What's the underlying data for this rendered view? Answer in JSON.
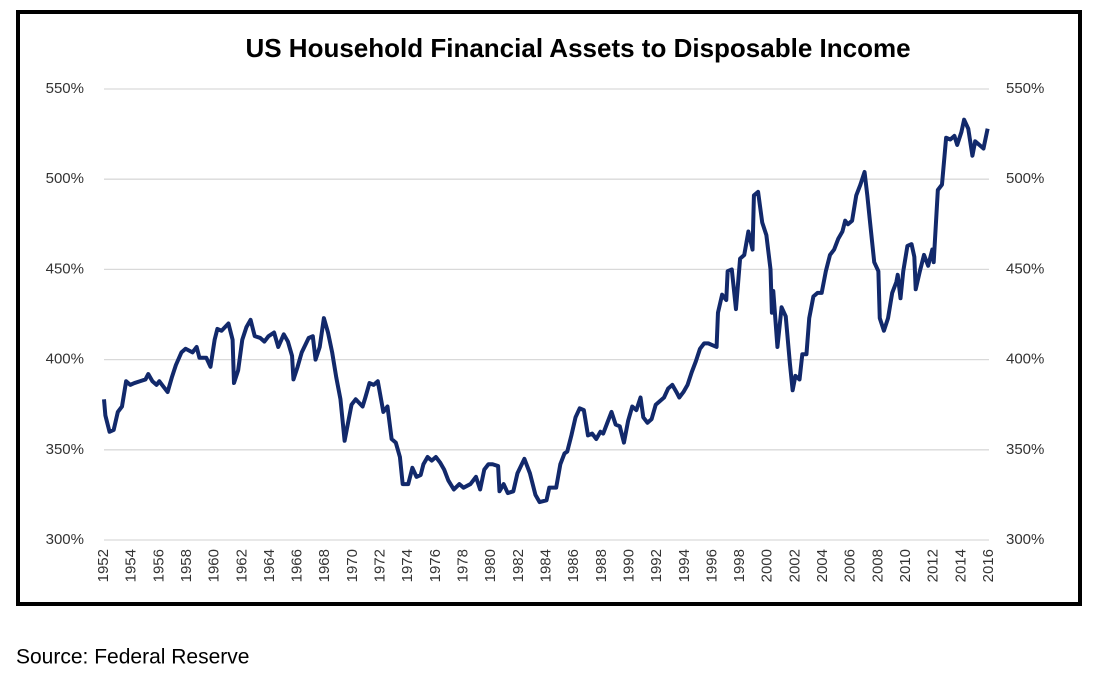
{
  "chart_data": {
    "type": "line",
    "title": "US Household Financial Assets to Disposable Income",
    "source": "Source: Federal Reserve",
    "xlim": [
      1952,
      2016
    ],
    "xticks": [
      1952,
      1954,
      1956,
      1958,
      1960,
      1962,
      1964,
      1966,
      1968,
      1970,
      1972,
      1974,
      1976,
      1978,
      1980,
      1982,
      1984,
      1986,
      1988,
      1990,
      1992,
      1994,
      1996,
      1998,
      2000,
      2002,
      2004,
      2006,
      2008,
      2010,
      2012,
      2014,
      2016
    ],
    "ylim": [
      300,
      550
    ],
    "yticks": [
      {
        "value": 300,
        "label": "300%"
      },
      {
        "value": 350,
        "label": "350%"
      },
      {
        "value": 400,
        "label": "400%"
      },
      {
        "value": 450,
        "label": "450%"
      },
      {
        "value": 500,
        "label": "500%"
      },
      {
        "value": 550,
        "label": "550%"
      }
    ],
    "y2lim": [
      300,
      550
    ],
    "y2ticks": [
      {
        "value": 300,
        "label": "300%"
      },
      {
        "value": 350,
        "label": "350%"
      },
      {
        "value": 400,
        "label": "400%"
      },
      {
        "value": 450,
        "label": "450%"
      },
      {
        "value": 500,
        "label": "500%"
      },
      {
        "value": 550,
        "label": "550%"
      }
    ],
    "grid": true,
    "x": [
      1952.0,
      1952.1,
      1952.4,
      1952.7,
      1953.0,
      1953.3,
      1953.6,
      1953.9,
      1954.2,
      1954.6,
      1955.0,
      1955.2,
      1955.5,
      1955.8,
      1956.0,
      1956.3,
      1956.6,
      1956.9,
      1957.2,
      1957.6,
      1957.9,
      1958.4,
      1958.7,
      1958.9,
      1959.4,
      1959.7,
      1960.0,
      1960.2,
      1960.5,
      1961.0,
      1961.3,
      1961.4,
      1961.7,
      1962.0,
      1962.3,
      1962.6,
      1962.9,
      1963.3,
      1963.6,
      1963.9,
      1964.3,
      1964.6,
      1965.0,
      1965.3,
      1965.6,
      1965.7,
      1966.0,
      1966.3,
      1966.8,
      1967.1,
      1967.3,
      1967.6,
      1967.9,
      1968.2,
      1968.5,
      1968.8,
      1969.1,
      1969.4,
      1969.6,
      1969.9,
      1970.2,
      1970.7,
      1970.9,
      1971.2,
      1971.5,
      1971.8,
      1972.2,
      1972.5,
      1972.8,
      1973.1,
      1973.4,
      1973.6,
      1974.0,
      1974.3,
      1974.6,
      1974.9,
      1975.1,
      1975.4,
      1975.7,
      1976.0,
      1976.3,
      1976.6,
      1976.9,
      1977.3,
      1977.7,
      1978.0,
      1978.5,
      1978.9,
      1979.2,
      1979.5,
      1979.8,
      1980.1,
      1980.5,
      1980.6,
      1980.9,
      1981.2,
      1981.6,
      1981.9,
      1982.4,
      1982.8,
      1983.2,
      1983.5,
      1984.0,
      1984.2,
      1984.7,
      1985.0,
      1985.3,
      1985.5,
      1985.8,
      1986.1,
      1986.4,
      1986.7,
      1987.0,
      1987.3,
      1987.6,
      1987.9,
      1988.1,
      1988.4,
      1988.7,
      1989.0,
      1989.3,
      1989.6,
      1989.9,
      1990.2,
      1990.5,
      1990.8,
      1991.0,
      1991.3,
      1991.6,
      1991.9,
      1992.2,
      1992.5,
      1992.8,
      1993.1,
      1993.4,
      1993.6,
      1993.9,
      1994.2,
      1994.5,
      1994.8,
      1995.1,
      1995.4,
      1995.7,
      1996.0,
      1996.3,
      1996.4,
      1996.7,
      1997.0,
      1997.1,
      1997.4,
      1997.7,
      1998.0,
      1998.3,
      1998.6,
      1998.9,
      1999.0,
      1999.3,
      1999.6,
      1999.9,
      2000.2,
      2000.3,
      2000.4,
      2000.7,
      2001.0,
      2001.3,
      2001.6,
      2001.8,
      2002.0,
      2002.3,
      2002.5,
      2002.8,
      2003.0,
      2003.3,
      2003.6,
      2003.9,
      2004.2,
      2004.5,
      2004.8,
      2005.1,
      2005.4,
      2005.6,
      2005.8,
      2006.1,
      2006.4,
      2006.7,
      2007.0,
      2007.2,
      2007.4,
      2007.7,
      2008.0,
      2008.1,
      2008.4,
      2008.7,
      2009.0,
      2009.3,
      2009.4,
      2009.6,
      2009.8,
      2010.1,
      2010.4,
      2010.6,
      2010.7,
      2011.0,
      2011.3,
      2011.6,
      2011.9,
      2012.0,
      2012.3,
      2012.6,
      2012.9,
      2013.2,
      2013.5,
      2013.7,
      2014.0,
      2014.2,
      2014.5,
      2014.8,
      2015.0,
      2015.3,
      2015.6,
      2015.9
    ],
    "series": [
      {
        "name": "Financial Assets to Disposable Income",
        "color": "#12296b",
        "values": [
          378,
          369,
          360,
          361,
          371,
          374,
          388,
          386,
          387,
          388,
          389,
          392,
          388,
          386,
          388,
          385,
          382,
          390,
          397,
          404,
          406,
          404,
          407,
          401,
          401,
          396,
          411,
          417,
          416,
          420,
          411,
          387,
          394,
          411,
          418,
          422,
          413,
          412,
          410,
          413,
          415,
          407,
          414,
          410,
          402,
          389,
          396,
          404,
          412,
          413,
          400,
          407,
          423,
          415,
          404,
          390,
          378,
          355,
          363,
          375,
          378,
          374,
          379,
          387,
          386,
          388,
          371,
          374,
          356,
          354,
          346,
          331,
          331,
          340,
          335,
          336,
          342,
          346,
          344,
          346,
          343,
          339,
          333,
          328,
          331,
          329,
          331,
          335,
          328,
          339,
          342,
          342,
          341,
          327,
          331,
          326,
          327,
          337,
          345,
          337,
          325,
          321,
          322,
          329,
          329,
          342,
          348,
          349,
          358,
          368,
          373,
          372,
          358,
          359,
          356,
          360,
          359,
          365,
          371,
          364,
          363,
          354,
          366,
          374,
          372,
          379,
          368,
          365,
          367,
          375,
          377,
          379,
          384,
          386,
          382,
          379,
          382,
          386,
          393,
          399,
          406,
          409,
          409,
          408,
          407,
          426,
          436,
          433,
          449,
          450,
          428,
          456,
          458,
          471,
          461,
          491,
          493,
          476,
          469,
          450,
          426,
          438,
          407,
          429,
          424,
          398,
          383,
          391,
          389,
          403,
          403,
          423,
          435,
          437,
          437,
          449,
          458,
          461,
          467,
          471,
          477,
          475,
          477,
          491,
          497,
          504,
          491,
          476,
          454,
          449,
          423,
          416,
          423,
          437,
          443,
          447,
          434,
          449,
          463,
          464,
          457,
          439,
          449,
          458,
          452,
          461,
          454,
          494,
          497,
          523,
          522,
          524,
          519,
          526,
          533,
          528,
          513,
          521,
          519,
          517,
          528
        ]
      }
    ]
  }
}
